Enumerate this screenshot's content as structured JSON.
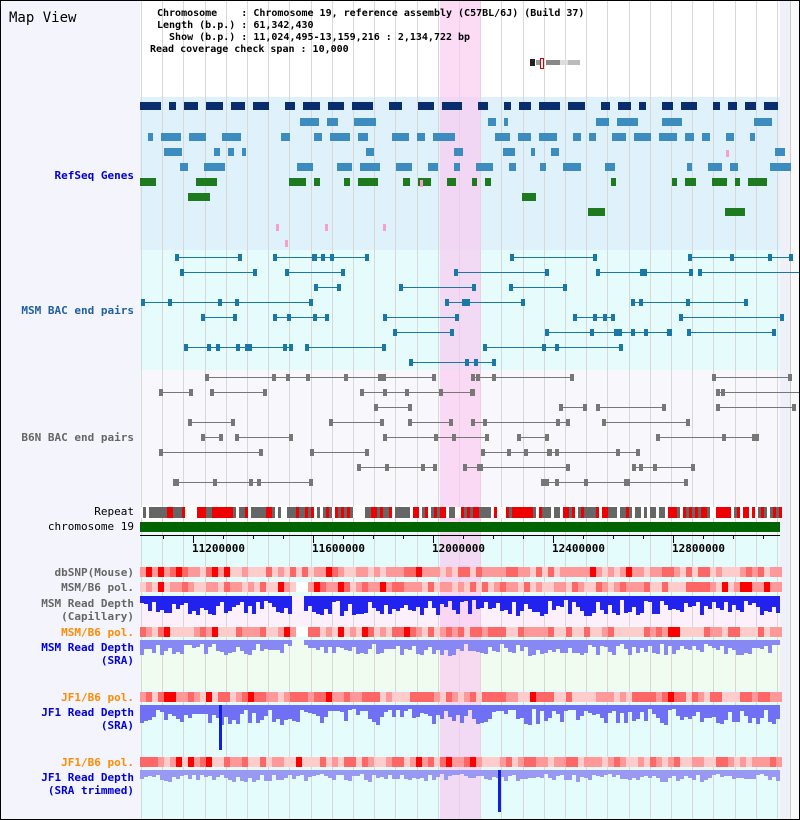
{
  "title": "Map View",
  "header": {
    "chromosome": "Chromosome    : Chromosome 19, reference assembly (C57BL/6J) (Build 37)",
    "length": "Length (b.p.) : 61,342,430",
    "show": "  Show (b.p.) : 11,024,495-13,159,216 : 2,134,722 bp",
    "span": "Read coverage check span : 10,000"
  },
  "tracks": {
    "refseq": "RefSeq Genes",
    "msm_bac": "MSM BAC end pairs",
    "b6n_bac": "B6N BAC end pairs",
    "repeat": "Repeat",
    "chromosome": "chromosome 19",
    "dbsnp": "dbSNP(Mouse)",
    "msm_pol1": "MSM/B6 pol.",
    "msm_depth_cap": "MSM Read Depth\n(Capillary)",
    "msm_pol2": "MSM/B6 pol.",
    "msm_depth_sra": "MSM Read Depth\n(SRA)",
    "jf1_pol1": "JF1/B6 pol.",
    "jf1_depth_sra": "JF1 Read Depth\n(SRA)",
    "jf1_pol2": "JF1/B6 pol.",
    "jf1_depth_trim": "JF1 Read Depth\n(SRA trimmed)"
  },
  "axis": {
    "labels": [
      "11200000",
      "11600000",
      "12000000",
      "12400000",
      "12800000"
    ]
  },
  "colors": {
    "navy": "#0a2d6e",
    "steel": "#3c8cc0",
    "green": "#1e7a1e",
    "chrom": "#006400",
    "orange": "#ff8c00",
    "blue": "#0000cc"
  }
}
